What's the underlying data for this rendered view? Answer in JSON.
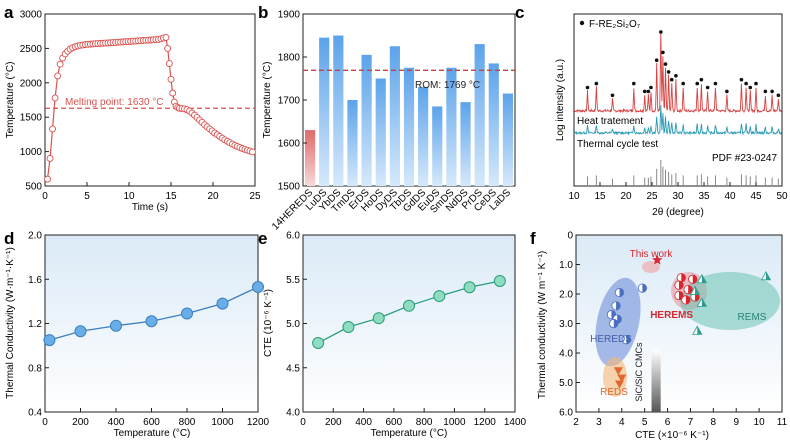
{
  "chart_data": [
    {
      "panel": "a",
      "type": "line",
      "xlabel": "Time (s)",
      "ylabel": "Temperature (°C)",
      "xlim": [
        0,
        25
      ],
      "ylim": [
        500,
        3000
      ],
      "xticks": [
        "0",
        "5",
        "10",
        "15",
        "20",
        "25"
      ],
      "yticks": [
        "500",
        "1000",
        "1500",
        "2000",
        "2500",
        "3000"
      ],
      "annotation": "Melting point: 1630 °C",
      "melting_point": 1630,
      "x": [
        0.3,
        0.6,
        0.9,
        1.2,
        1.5,
        1.8,
        2.1,
        2.4,
        2.7,
        3.0,
        3.3,
        3.6,
        3.9,
        4.2,
        4.5,
        4.8,
        5.1,
        5.4,
        5.7,
        6.0,
        6.3,
        6.6,
        6.9,
        7.2,
        7.5,
        7.8,
        8.1,
        8.4,
        8.7,
        9.0,
        9.3,
        9.6,
        9.9,
        10.2,
        10.5,
        10.8,
        11.1,
        11.4,
        11.7,
        12.0,
        12.3,
        12.6,
        12.9,
        13.2,
        13.5,
        13.8,
        14.1,
        14.4,
        14.6,
        14.8,
        15.0,
        15.2,
        15.4,
        15.6,
        15.8,
        16.0,
        16.3,
        16.6,
        16.9,
        17.2,
        17.5,
        17.8,
        18.1,
        18.4,
        18.7,
        19.0,
        19.3,
        19.6,
        19.9,
        20.2,
        20.5,
        20.8,
        21.1,
        21.4,
        21.7,
        22.0,
        22.3,
        22.6,
        22.9,
        23.2,
        23.5,
        23.8,
        24.1,
        24.4,
        24.7
      ],
      "y": [
        600,
        900,
        1330,
        1780,
        2100,
        2270,
        2360,
        2420,
        2460,
        2490,
        2510,
        2525,
        2535,
        2545,
        2550,
        2555,
        2560,
        2562,
        2565,
        2568,
        2570,
        2573,
        2575,
        2578,
        2580,
        2582,
        2585,
        2587,
        2590,
        2592,
        2595,
        2597,
        2600,
        2602,
        2605,
        2607,
        2610,
        2612,
        2615,
        2617,
        2620,
        2622,
        2625,
        2628,
        2630,
        2640,
        2650,
        2660,
        2500,
        2280,
        2050,
        1850,
        1720,
        1660,
        1640,
        1630,
        1625,
        1620,
        1610,
        1590,
        1560,
        1530,
        1495,
        1460,
        1425,
        1390,
        1360,
        1330,
        1300,
        1270,
        1245,
        1220,
        1195,
        1172,
        1150,
        1130,
        1110,
        1092,
        1075,
        1060,
        1045,
        1032,
        1020,
        1008,
        995
      ]
    },
    {
      "panel": "b",
      "type": "bar",
      "ylabel": "Temperature (°C)",
      "ylim": [
        1500,
        1900
      ],
      "yticks": [
        "1500",
        "1600",
        "1700",
        "1800",
        "1900"
      ],
      "categories": [
        "14HEREDS",
        "LuDS",
        "YbDS",
        "TmDS",
        "ErDS",
        "HoDS",
        "DyDS",
        "TbDS",
        "GdDS",
        "EuDS",
        "SmDS",
        "NdDS",
        "PrDS",
        "CeDS",
        "LaDS"
      ],
      "values": [
        1630,
        1845,
        1850,
        1700,
        1805,
        1750,
        1825,
        1775,
        1730,
        1685,
        1775,
        1695,
        1830,
        1785,
        1715
      ],
      "rom_label": "ROM: 1769 °C",
      "rom_value": 1769
    },
    {
      "panel": "c",
      "type": "line",
      "xlabel": "2θ (degree)",
      "ylabel": "Log intensity (a.u.)",
      "xlim": [
        10,
        50
      ],
      "xticks": [
        "10",
        "15",
        "20",
        "25",
        "30",
        "35",
        "40",
        "45",
        "50"
      ],
      "legend": "F-RE₂Si₂O₇",
      "series": [
        {
          "name": "Heat tratement",
          "color": "#d94040"
        },
        {
          "name": "Thermal cycle test",
          "color": "#2a9bb5"
        },
        {
          "name": "PDF #23-0247",
          "color": "#888888"
        }
      ],
      "peaks": [
        12.6,
        14.3,
        17.4,
        21.5,
        23.6,
        24.3,
        24.8,
        25.9,
        26.7,
        27.1,
        27.6,
        28.2,
        28.8,
        29.6,
        31.0,
        33.7,
        34.5,
        35.7,
        37.2,
        39.4,
        42.2,
        43.1,
        43.9,
        45.0,
        46.8,
        48.1,
        49.3
      ],
      "peak_heights": [
        0.25,
        0.3,
        0.15,
        0.3,
        0.2,
        0.2,
        0.25,
        0.6,
        1.0,
        0.7,
        0.55,
        0.45,
        0.35,
        0.4,
        0.3,
        0.3,
        0.35,
        0.25,
        0.3,
        0.2,
        0.35,
        0.3,
        0.25,
        0.3,
        0.2,
        0.2,
        0.15
      ]
    },
    {
      "panel": "d",
      "type": "line",
      "xlabel": "Temperature (°C)",
      "ylabel": "Thermal Conductivity (W·m⁻¹·K⁻¹)",
      "xlim": [
        0,
        1200
      ],
      "ylim": [
        0.4,
        2.0
      ],
      "xticks": [
        "0",
        "200",
        "400",
        "600",
        "800",
        "1000",
        "1200"
      ],
      "yticks": [
        "0.4",
        "0.8",
        "1.2",
        "1.6",
        "2.0"
      ],
      "x": [
        25,
        200,
        400,
        600,
        800,
        1000,
        1200
      ],
      "y": [
        1.05,
        1.13,
        1.18,
        1.22,
        1.29,
        1.38,
        1.53
      ]
    },
    {
      "panel": "e",
      "type": "line",
      "xlabel": "Temperature (°C)",
      "ylabel": "CTE (10⁻⁶ K⁻¹)",
      "xlim": [
        0,
        1400
      ],
      "ylim": [
        4.0,
        6.0
      ],
      "xticks": [
        "0",
        "200",
        "400",
        "600",
        "800",
        "1000",
        "1200",
        "1400"
      ],
      "yticks": [
        "4.0",
        "4.5",
        "5.0",
        "5.5",
        "6.0"
      ],
      "x": [
        100,
        300,
        500,
        700,
        900,
        1100,
        1300
      ],
      "y": [
        4.78,
        4.96,
        5.06,
        5.2,
        5.31,
        5.41,
        5.48
      ]
    },
    {
      "panel": "f",
      "type": "scatter",
      "xlabel": "CTE (×10⁻⁶ K⁻¹)",
      "ylabel": "Thermal conductivity (W m⁻¹ K⁻¹)",
      "xlim": [
        2,
        11
      ],
      "ylim": [
        6.0,
        0
      ],
      "xticks": [
        "2",
        "3",
        "4",
        "5",
        "6",
        "7",
        "8",
        "9",
        "10",
        "11"
      ],
      "yticks": [
        "0",
        "1.0",
        "2.0",
        "3.0",
        "4.0",
        "5.0",
        "6.0"
      ],
      "groups": [
        {
          "label": "HEREDS",
          "color": "#4a6fc1",
          "points": [
            [
              3.9,
              1.95
            ],
            [
              4.9,
              1.8
            ],
            [
              3.75,
              2.4
            ],
            [
              3.55,
              2.7
            ],
            [
              3.8,
              2.85
            ],
            [
              3.65,
              3.0
            ],
            [
              4.2,
              3.55
            ]
          ]
        },
        {
          "label": "HEREMS",
          "color": "#d9262e",
          "points": [
            [
              6.6,
              1.45
            ],
            [
              7.1,
              1.5
            ],
            [
              6.5,
              1.7
            ],
            [
              6.9,
              1.85
            ],
            [
              6.5,
              2.05
            ],
            [
              7.2,
              2.1
            ],
            [
              6.8,
              2.2
            ]
          ]
        },
        {
          "label": "REMS",
          "color": "#2a9d8f",
          "points": [
            [
              7.5,
              1.5
            ],
            [
              10.3,
              1.4
            ],
            [
              7.2,
              1.9
            ],
            [
              7.5,
              2.3
            ],
            [
              7.3,
              3.25
            ]
          ]
        },
        {
          "label": "REDS",
          "color": "#e0672d",
          "points": [
            [
              3.85,
              4.6
            ],
            [
              4.0,
              4.85
            ],
            [
              3.9,
              5.05
            ]
          ]
        }
      ],
      "this_work_label": "This work",
      "this_work": [
        5.55,
        0.85
      ],
      "sic_label": "SiC/SiC CMCs",
      "sic_cte": [
        5.3,
        5.7
      ]
    }
  ]
}
